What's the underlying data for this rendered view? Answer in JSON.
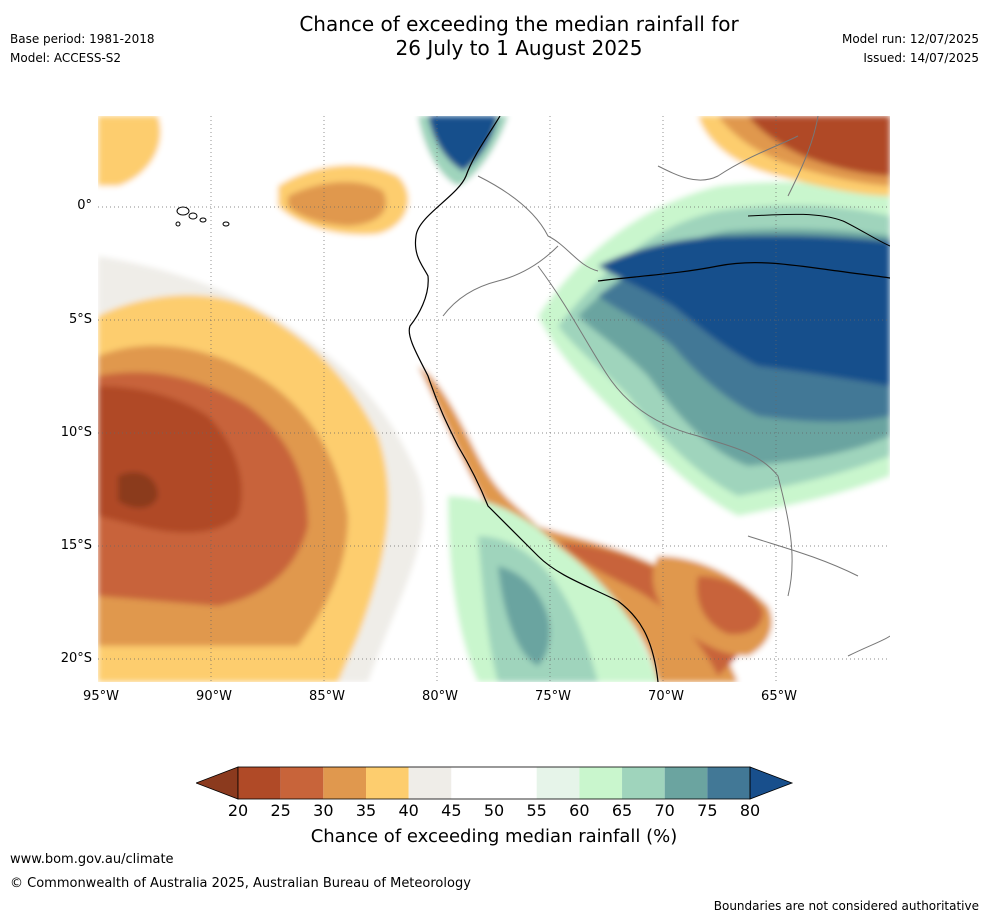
{
  "header": {
    "title_line1": "Chance of exceeding the median rainfall for",
    "title_line2": "26 July to 1 August 2025",
    "base_period": "Base period: 1981-2018",
    "model": "Model: ACCESS-S2",
    "model_run": "Model run: 12/07/2025",
    "issued": "Issued: 14/07/2025"
  },
  "map": {
    "lat_labels": [
      "0°",
      "5°S",
      "10°S",
      "15°S",
      "20°S"
    ],
    "lon_labels": [
      "95°W",
      "90°W",
      "85°W",
      "80°W",
      "75°W",
      "70°W",
      "65°W"
    ]
  },
  "colorbar": {
    "ticks": [
      "20",
      "25",
      "30",
      "35",
      "40",
      "45",
      "50",
      "55",
      "60",
      "65",
      "70",
      "75",
      "80"
    ],
    "title": "Chance of exceeding median rainfall (%)",
    "colors": [
      "#8b3a1e",
      "#b04a27",
      "#c8643a",
      "#e0984e",
      "#fdcd6e",
      "#efede8",
      "#ffffff",
      "#ffffff",
      "#e6f4e9",
      "#c9f6cd",
      "#9fd4bc",
      "#6ba4a0",
      "#427896",
      "#184f8c"
    ]
  },
  "footer": {
    "url": "www.bom.gov.au/climate",
    "copyright": "© Commonwealth of Australia 2025, Australian Bureau of Meteorology",
    "disclaimer": "Boundaries are not considered authoritative"
  }
}
